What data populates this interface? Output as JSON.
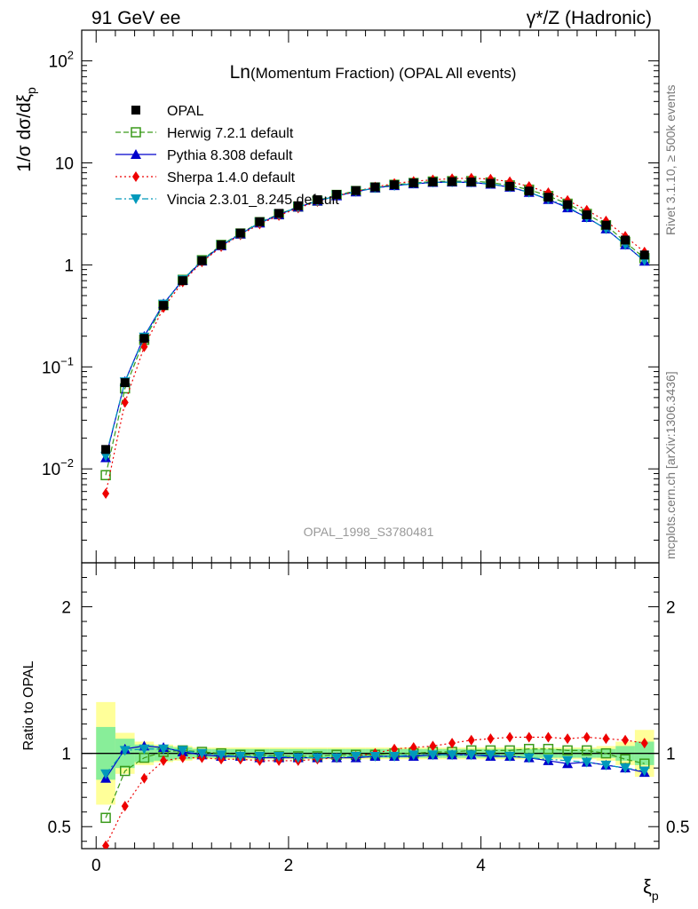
{
  "header": {
    "left": "91 GeV ee",
    "right_main": "γ*/Z (Hadronic)"
  },
  "side": {
    "rivet": "Rivet 3.1.10, ≥ 500k events",
    "mcplots": "mcplots.cern.ch [arXiv:1306.3436]"
  },
  "plot": {
    "title_big": "Ln",
    "title_small": "(Momentum Fraction) (OPAL All events)",
    "watermark": "OPAL_1998_S3780481",
    "ylabel_top": "1/σ dσ/dξ",
    "ylabel_top_sub": "p",
    "ylabel_bottom": "Ratio to OPAL",
    "xlabel": "ξ",
    "xlabel_sub": "p"
  },
  "legend": [
    {
      "name": "OPAL",
      "color": "#000000",
      "marker": "square-filled",
      "dash": "none"
    },
    {
      "name": "Herwig 7.2.1 default",
      "color": "#3a9a1a",
      "marker": "square-open",
      "dash": "6,3"
    },
    {
      "name": "Pythia 8.308 default",
      "color": "#0000cc",
      "marker": "triangle-up",
      "dash": ""
    },
    {
      "name": "Sherpa 1.4.0 default",
      "color": "#ee0000",
      "marker": "diamond",
      "dash": "2,3"
    },
    {
      "name": "Vincia 2.3.01_8.245 default",
      "color": "#0099bb",
      "marker": "triangle-down",
      "dash": "7,3,2,3"
    }
  ],
  "chart_data": {
    "type": "line",
    "x": [
      0.1,
      0.3,
      0.5,
      0.7,
      0.9,
      1.1,
      1.3,
      1.5,
      1.7,
      1.9,
      2.1,
      2.3,
      2.5,
      2.7,
      2.9,
      3.1,
      3.3,
      3.5,
      3.7,
      3.9,
      4.1,
      4.3,
      4.5,
      4.7,
      4.9,
      5.1,
      5.3,
      5.5,
      5.7
    ],
    "x_edges": [
      0.0,
      0.2,
      0.4,
      0.6,
      0.8,
      1.0,
      1.2,
      1.4,
      1.6,
      1.8,
      2.0,
      2.2,
      2.4,
      2.6,
      2.8,
      3.0,
      3.2,
      3.4,
      3.6,
      3.8,
      4.0,
      4.2,
      4.4,
      4.6,
      4.8,
      5.0,
      5.2,
      5.4,
      5.6,
      5.8
    ],
    "xlim": [
      -0.15,
      5.85
    ],
    "top": {
      "yscale": "log",
      "ylim": [
        0.0012,
        200
      ],
      "ytick_labels": [
        {
          "v": 0.01,
          "base": "10",
          "exp": "−2"
        },
        {
          "v": 0.1,
          "base": "10",
          "exp": "−1"
        },
        {
          "v": 1,
          "base": "1",
          "exp": ""
        },
        {
          "v": 10,
          "base": "10",
          "exp": ""
        },
        {
          "v": 100,
          "base": "10",
          "exp": "2"
        }
      ]
    },
    "ratio": {
      "ylim": [
        0.35,
        2.3
      ],
      "yticks": [
        0.5,
        1,
        2
      ],
      "ytick_labels": [
        "0.5",
        "1",
        "2"
      ]
    },
    "xticks": [
      0,
      2,
      4
    ],
    "xtick_labels": [
      "0",
      "2",
      "4"
    ],
    "data": {
      "name": "OPAL",
      "values": [
        0.0155,
        0.07,
        0.19,
        0.4,
        0.7,
        1.1,
        1.57,
        2.05,
        2.65,
        3.2,
        3.8,
        4.35,
        4.9,
        5.35,
        5.8,
        6.1,
        6.35,
        6.5,
        6.55,
        6.5,
        6.3,
        5.9,
        5.3,
        4.6,
        3.9,
        3.1,
        2.45,
        1.75,
        1.25
      ],
      "band_inner": [
        0.18,
        0.1,
        0.06,
        0.05,
        0.04,
        0.03,
        0.03,
        0.03,
        0.03,
        0.03,
        0.03,
        0.03,
        0.03,
        0.03,
        0.03,
        0.03,
        0.03,
        0.03,
        0.03,
        0.03,
        0.03,
        0.03,
        0.03,
        0.03,
        0.03,
        0.03,
        0.03,
        0.05,
        0.08
      ],
      "band_outer": [
        0.35,
        0.14,
        0.08,
        0.06,
        0.05,
        0.04,
        0.04,
        0.04,
        0.04,
        0.04,
        0.04,
        0.04,
        0.04,
        0.04,
        0.04,
        0.04,
        0.04,
        0.04,
        0.04,
        0.04,
        0.04,
        0.04,
        0.04,
        0.04,
        0.04,
        0.04,
        0.05,
        0.08,
        0.16
      ]
    },
    "series": [
      {
        "name": "Herwig 7.2.1 default",
        "ratio": [
          0.56,
          0.88,
          0.97,
          1.01,
          1.02,
          1.01,
          1.0,
          0.99,
          0.99,
          0.98,
          0.98,
          0.98,
          0.99,
          0.99,
          0.99,
          1.0,
          1.0,
          1.01,
          1.01,
          1.02,
          1.02,
          1.02,
          1.03,
          1.03,
          1.02,
          1.02,
          1.0,
          0.96,
          0.93
        ]
      },
      {
        "name": "Pythia 8.308 default",
        "ratio": [
          0.83,
          1.03,
          1.05,
          1.04,
          1.01,
          0.99,
          0.98,
          0.98,
          0.97,
          0.97,
          0.97,
          0.97,
          0.97,
          0.97,
          0.98,
          0.98,
          0.98,
          0.99,
          0.99,
          0.99,
          0.98,
          0.98,
          0.97,
          0.95,
          0.93,
          0.94,
          0.92,
          0.9,
          0.87
        ]
      },
      {
        "name": "Sherpa 1.4.0 default",
        "ratio": [
          0.37,
          0.64,
          0.83,
          0.95,
          0.97,
          0.97,
          0.96,
          0.96,
          0.95,
          0.95,
          0.95,
          0.96,
          0.97,
          0.98,
          1.0,
          1.03,
          1.04,
          1.05,
          1.07,
          1.09,
          1.1,
          1.11,
          1.11,
          1.11,
          1.1,
          1.11,
          1.1,
          1.09,
          1.07
        ]
      },
      {
        "name": "Vincia 2.3.01_8.245 default",
        "ratio": [
          0.86,
          1.02,
          1.03,
          1.03,
          1.02,
          1.0,
          0.99,
          0.98,
          0.98,
          0.98,
          0.97,
          0.97,
          0.97,
          0.98,
          0.98,
          0.98,
          0.99,
          0.99,
          0.99,
          0.99,
          0.99,
          0.98,
          0.97,
          0.96,
          0.95,
          0.94,
          0.92,
          0.9,
          0.88
        ]
      }
    ]
  }
}
